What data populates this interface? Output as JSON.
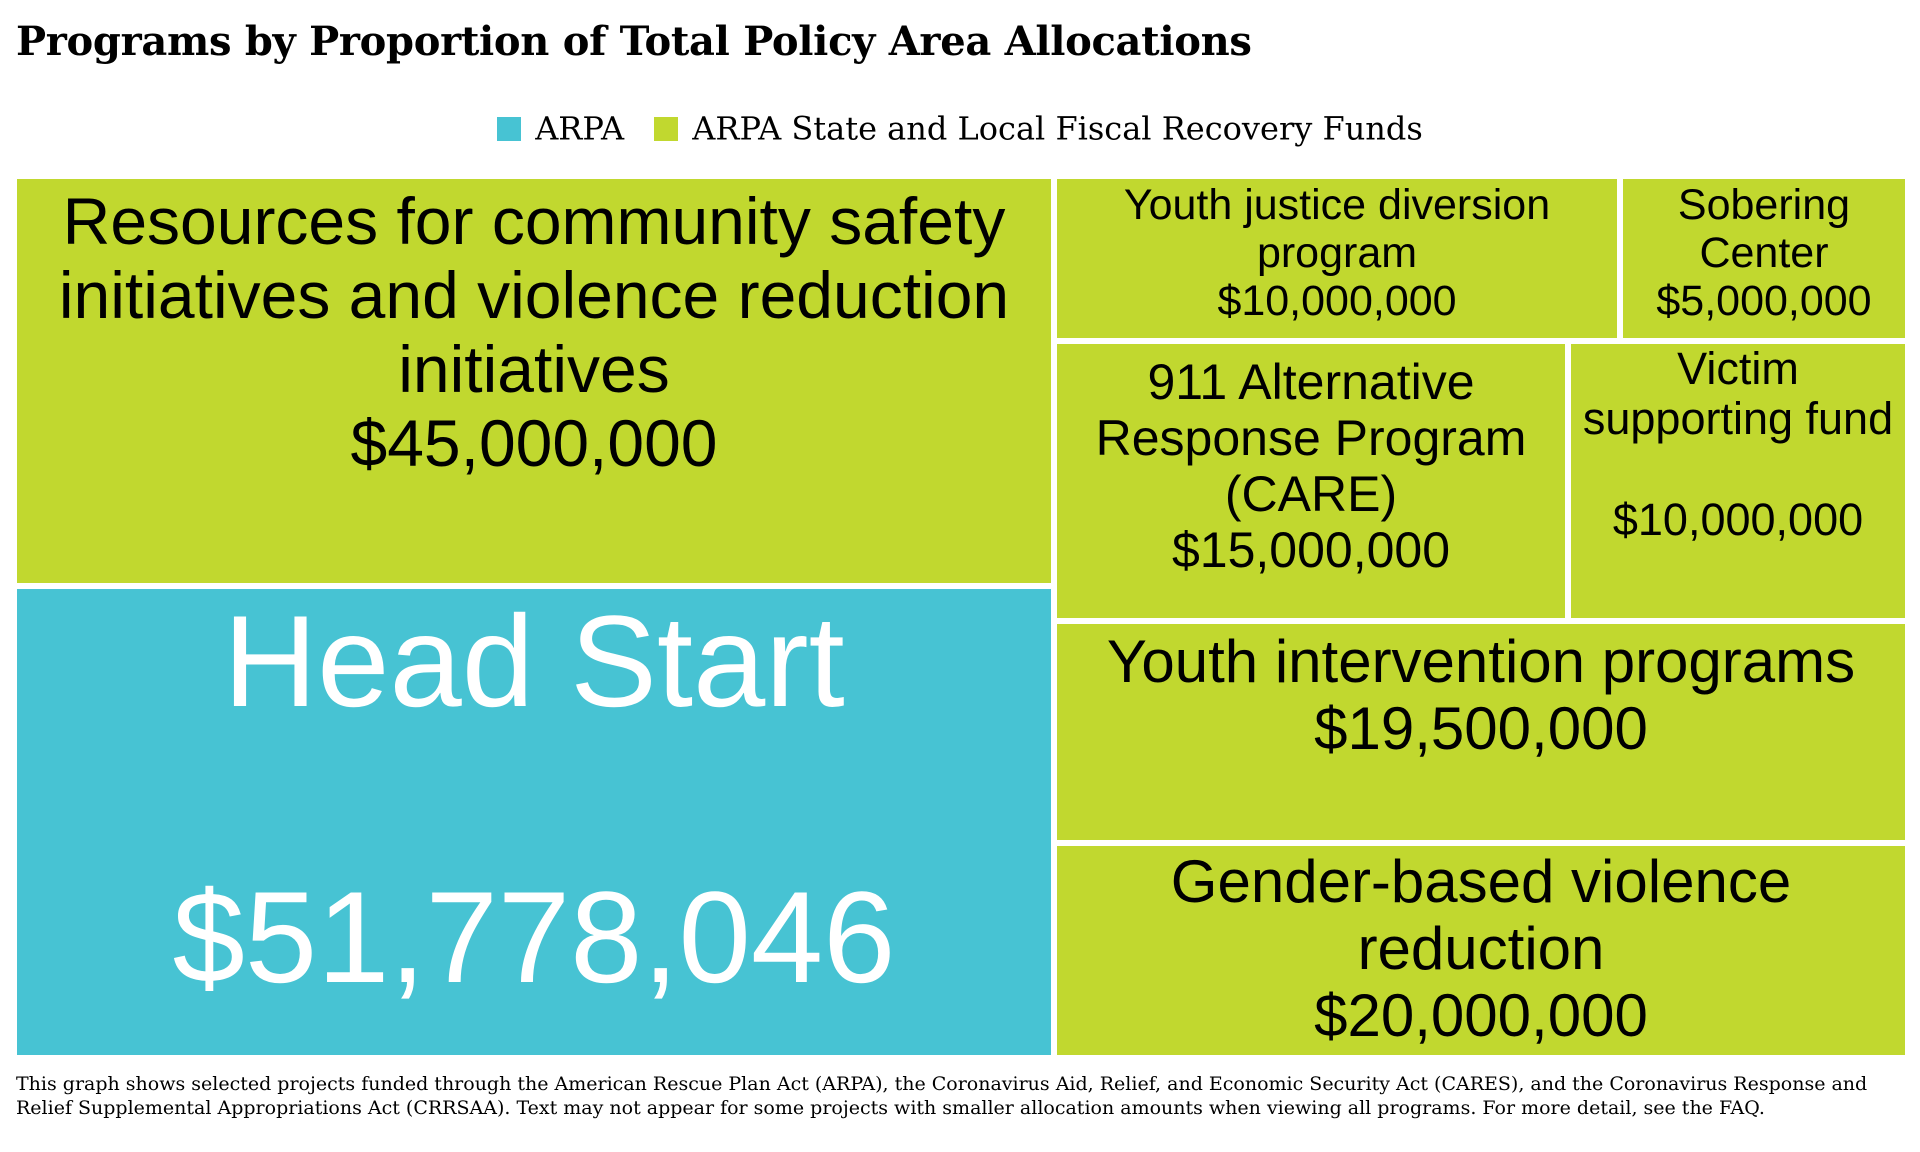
{
  "chart_data": {
    "type": "treemap",
    "title": "Programs by Proportion of Total Policy Area Allocations",
    "legend": [
      {
        "name": "ARPA",
        "color": "#47c3d3"
      },
      {
        "name": "ARPA State and Local Fiscal Recovery Funds",
        "color": "#c1d82f"
      }
    ],
    "tiles": [
      {
        "label": "Resources for community safety initiatives and violence reduction initiatives",
        "value": 45000000,
        "value_text": "$45,000,000",
        "group": "ARPA State and Local Fiscal Recovery Funds"
      },
      {
        "label": "Head Start",
        "value": 51778046,
        "value_text": "$51,778,046",
        "group": "ARPA"
      },
      {
        "label": "Youth justice diversion program",
        "value": 10000000,
        "value_text": "$10,000,000",
        "group": "ARPA State and Local Fiscal Recovery Funds"
      },
      {
        "label": "Sobering Center",
        "value": 5000000,
        "value_text": "$5,000,000",
        "group": "ARPA State and Local Fiscal Recovery Funds"
      },
      {
        "label": "911 Alternative Response Program (CARE)",
        "value": 15000000,
        "value_text": "$15,000,000",
        "group": "ARPA State and Local Fiscal Recovery Funds"
      },
      {
        "label": "Victim supporting fund",
        "value": 10000000,
        "value_text": "$10,000,000",
        "group": "ARPA State and Local Fiscal Recovery Funds"
      },
      {
        "label": "Youth intervention programs",
        "value": 19500000,
        "value_text": "$19,500,000",
        "group": "ARPA State and Local Fiscal Recovery Funds"
      },
      {
        "label": "Gender-based violence reduction",
        "value": 20000000,
        "value_text": "$20,000,000",
        "group": "ARPA State and Local Fiscal Recovery Funds"
      }
    ]
  },
  "footnote": "This graph shows selected projects funded through the American Rescue Plan Act (ARPA), the Coronavirus Aid, Relief, and Economic Security Act (CARES), and the Coronavirus Response and Relief Supplemental Appropriations Act (CRRSAA). Text may not appear for some projects with smaller allocation amounts when viewing all programs. For more detail, see the FAQ."
}
